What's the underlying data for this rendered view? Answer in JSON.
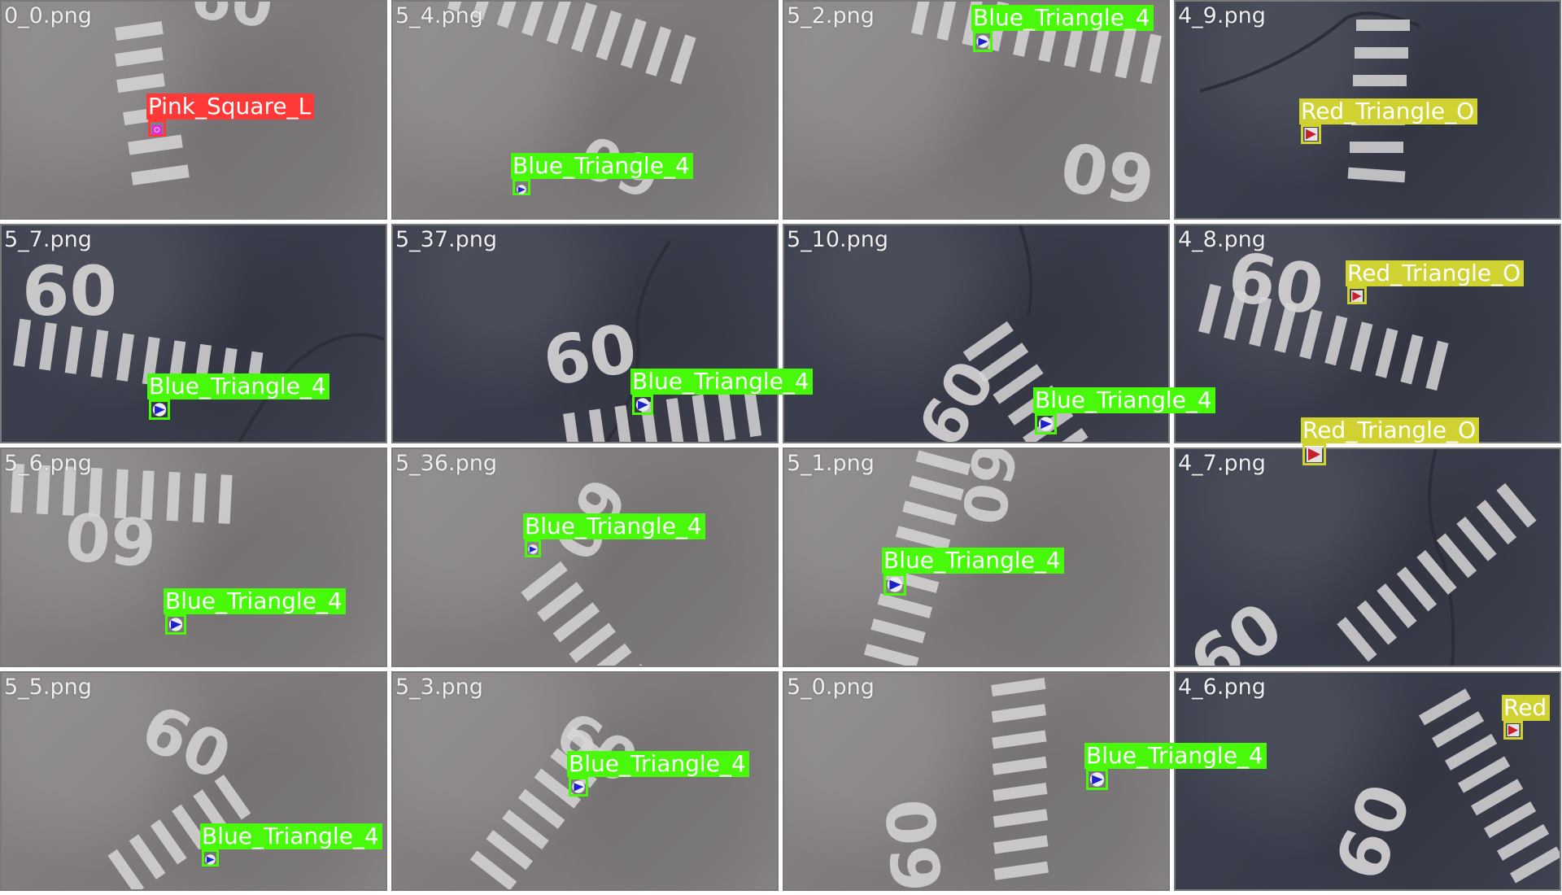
{
  "mosaic": {
    "tiles": [
      {
        "file": "0_0.png",
        "surface": "light"
      },
      {
        "file": "5_4.png",
        "surface": "light"
      },
      {
        "file": "5_2.png",
        "surface": "light"
      },
      {
        "file": "4_9.png",
        "surface": "dark"
      },
      {
        "file": "5_7.png",
        "surface": "dark"
      },
      {
        "file": "5_37.png",
        "surface": "dark"
      },
      {
        "file": "5_10.png",
        "surface": "dark"
      },
      {
        "file": "4_8.png",
        "surface": "dark"
      },
      {
        "file": "5_6.png",
        "surface": "light"
      },
      {
        "file": "5_36.png",
        "surface": "light"
      },
      {
        "file": "5_1.png",
        "surface": "light"
      },
      {
        "file": "4_7.png",
        "surface": "dark"
      },
      {
        "file": "5_5.png",
        "surface": "light"
      },
      {
        "file": "5_3.png",
        "surface": "light"
      },
      {
        "file": "5_0.png",
        "surface": "light"
      },
      {
        "file": "4_6.png",
        "surface": "dark"
      }
    ],
    "runway_marking": "60"
  },
  "detections": [
    {
      "label": "Pink_Square_L",
      "color": "#ff3838",
      "target": "pink-square"
    },
    {
      "label": "Blue_Triangle_4",
      "color": "#48f90a",
      "target": "blue-triangle"
    },
    {
      "label": "Blue_Triangle_4",
      "color": "#48f90a",
      "target": "blue-triangle"
    },
    {
      "label": "Red_Triangle_O",
      "color": "#cfd231",
      "target": "red-triangle"
    },
    {
      "label": "Blue_Triangle_4",
      "color": "#48f90a",
      "target": "blue-triangle"
    },
    {
      "label": "Blue_Triangle_4",
      "color": "#48f90a",
      "target": "blue-triangle"
    },
    {
      "label": "Blue_Triangle_4",
      "color": "#48f90a",
      "target": "blue-triangle"
    },
    {
      "label": "Red_Triangle_O",
      "color": "#cfd231",
      "target": "red-triangle"
    },
    {
      "label": "Red_Triangle_O",
      "color": "#cfd231",
      "target": "red-triangle"
    },
    {
      "label": "Blue_Triangle_4",
      "color": "#48f90a",
      "target": "blue-triangle"
    },
    {
      "label": "Blue_Triangle_4",
      "color": "#48f90a",
      "target": "blue-triangle"
    },
    {
      "label": "Blue_Triangle_4",
      "color": "#48f90a",
      "target": "blue-triangle"
    },
    {
      "label": "Blue_Triangle_4",
      "color": "#48f90a",
      "target": "blue-triangle"
    },
    {
      "label": "Blue_Triangle_4",
      "color": "#48f90a",
      "target": "blue-triangle"
    },
    {
      "label": "Blue_Triangle_4",
      "color": "#48f90a",
      "target": "blue-triangle"
    },
    {
      "label": "Red",
      "color": "#cfd231",
      "target": "red-triangle"
    }
  ]
}
